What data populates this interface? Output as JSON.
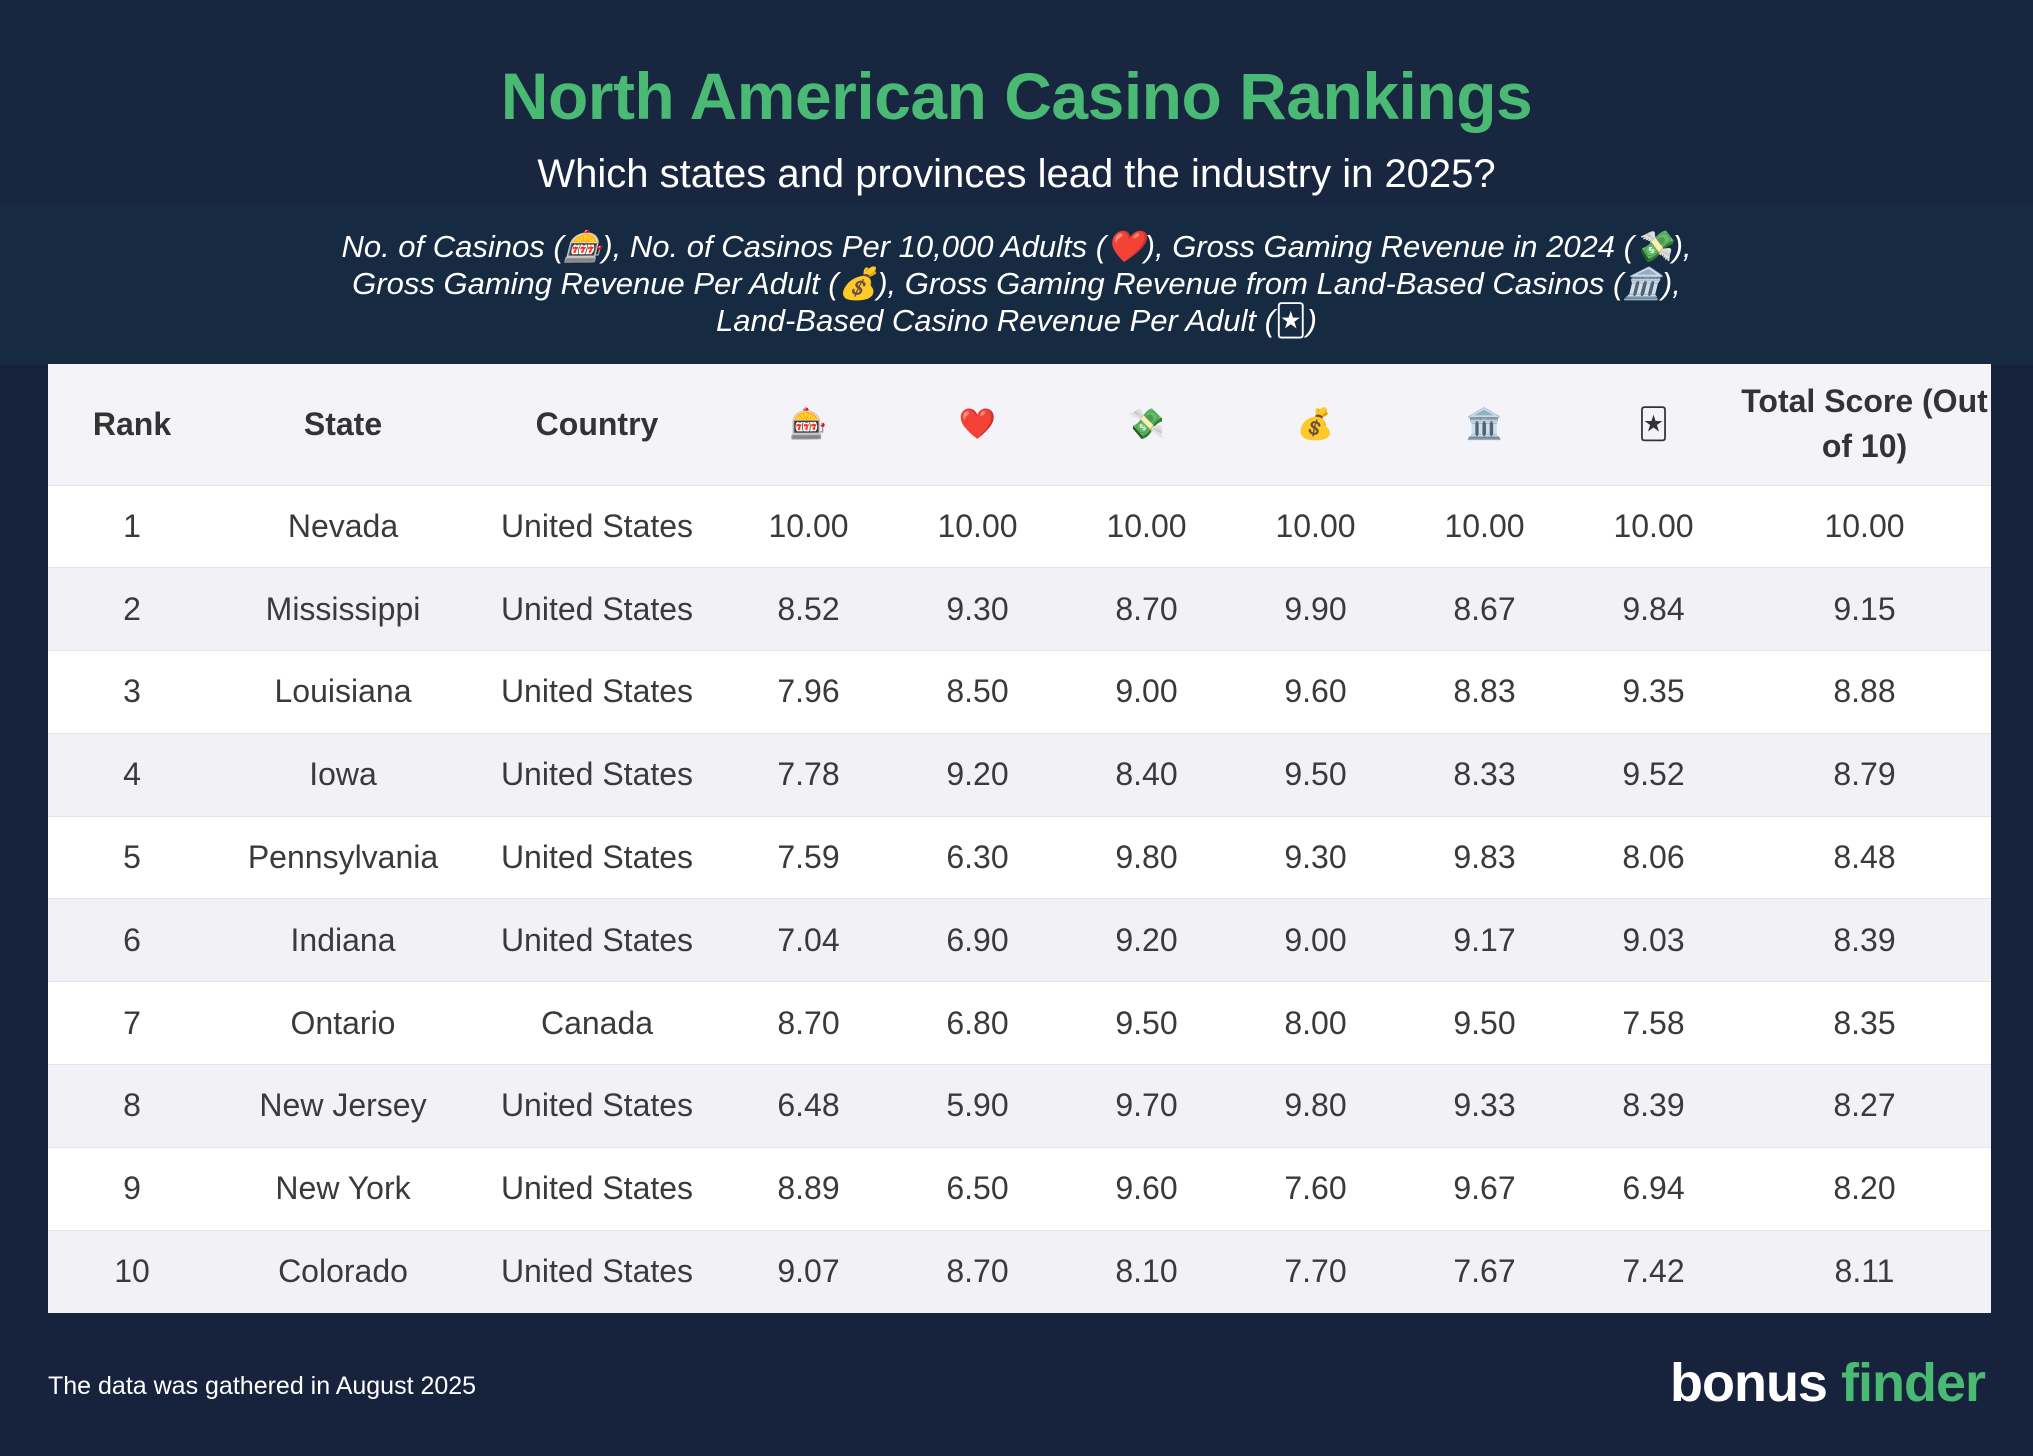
{
  "chart_data": {
    "type": "table",
    "title": "North American Casino Rankings",
    "subtitle": "Which states and provinces lead the industry in 2025?",
    "legend": [
      "No. of Casinos (🎰)",
      "No. of Casinos Per 10,000 Adults (❤️)",
      "Gross Gaming Revenue in 2024 (💸)",
      "Gross Gaming Revenue Per Adult (💰)",
      "Gross Gaming Revenue from Land-Based Casinos (🏛️)",
      "Land-Based Casino Revenue Per Adult (🃏)"
    ],
    "columns": [
      "Rank",
      "State",
      "Country",
      "🎰",
      "❤️",
      "💸",
      "💰",
      "🏛️",
      "🃏",
      "Total Score (Out of 10)"
    ],
    "column_icon_names": [
      "slot-machine-icon",
      "heart-icon",
      "money-wings-icon",
      "money-bag-icon",
      "bank-icon",
      "joker-card-icon"
    ],
    "rows": [
      [
        "1",
        "Nevada",
        "United States",
        "10.00",
        "10.00",
        "10.00",
        "10.00",
        "10.00",
        "10.00",
        "10.00"
      ],
      [
        "2",
        "Mississippi",
        "United States",
        "8.52",
        "9.30",
        "8.70",
        "9.90",
        "8.67",
        "9.84",
        "9.15"
      ],
      [
        "3",
        "Louisiana",
        "United States",
        "7.96",
        "8.50",
        "9.00",
        "9.60",
        "8.83",
        "9.35",
        "8.88"
      ],
      [
        "4",
        "Iowa",
        "United States",
        "7.78",
        "9.20",
        "8.40",
        "9.50",
        "8.33",
        "9.52",
        "8.79"
      ],
      [
        "5",
        "Pennsylvania",
        "United States",
        "7.59",
        "6.30",
        "9.80",
        "9.30",
        "9.83",
        "8.06",
        "8.48"
      ],
      [
        "6",
        "Indiana",
        "United States",
        "7.04",
        "6.90",
        "9.20",
        "9.00",
        "9.17",
        "9.03",
        "8.39"
      ],
      [
        "7",
        "Ontario",
        "Canada",
        "8.70",
        "6.80",
        "9.50",
        "8.00",
        "9.50",
        "7.58",
        "8.35"
      ],
      [
        "8",
        "New Jersey",
        "United States",
        "6.48",
        "5.90",
        "9.70",
        "9.80",
        "9.33",
        "8.39",
        "8.27"
      ],
      [
        "9",
        "New York",
        "United States",
        "8.89",
        "6.50",
        "9.60",
        "7.60",
        "9.67",
        "6.94",
        "8.20"
      ],
      [
        "10",
        "Colorado",
        "United States",
        "9.07",
        "8.70",
        "8.10",
        "7.70",
        "7.67",
        "7.42",
        "8.11"
      ]
    ]
  },
  "footer": {
    "note": "The data was gathered in August 2025",
    "brand_part1": "bonus",
    "brand_part2": "finder"
  },
  "colors": {
    "background": "#17233c",
    "title": "#49b974",
    "brand_accent": "#49b974"
  }
}
